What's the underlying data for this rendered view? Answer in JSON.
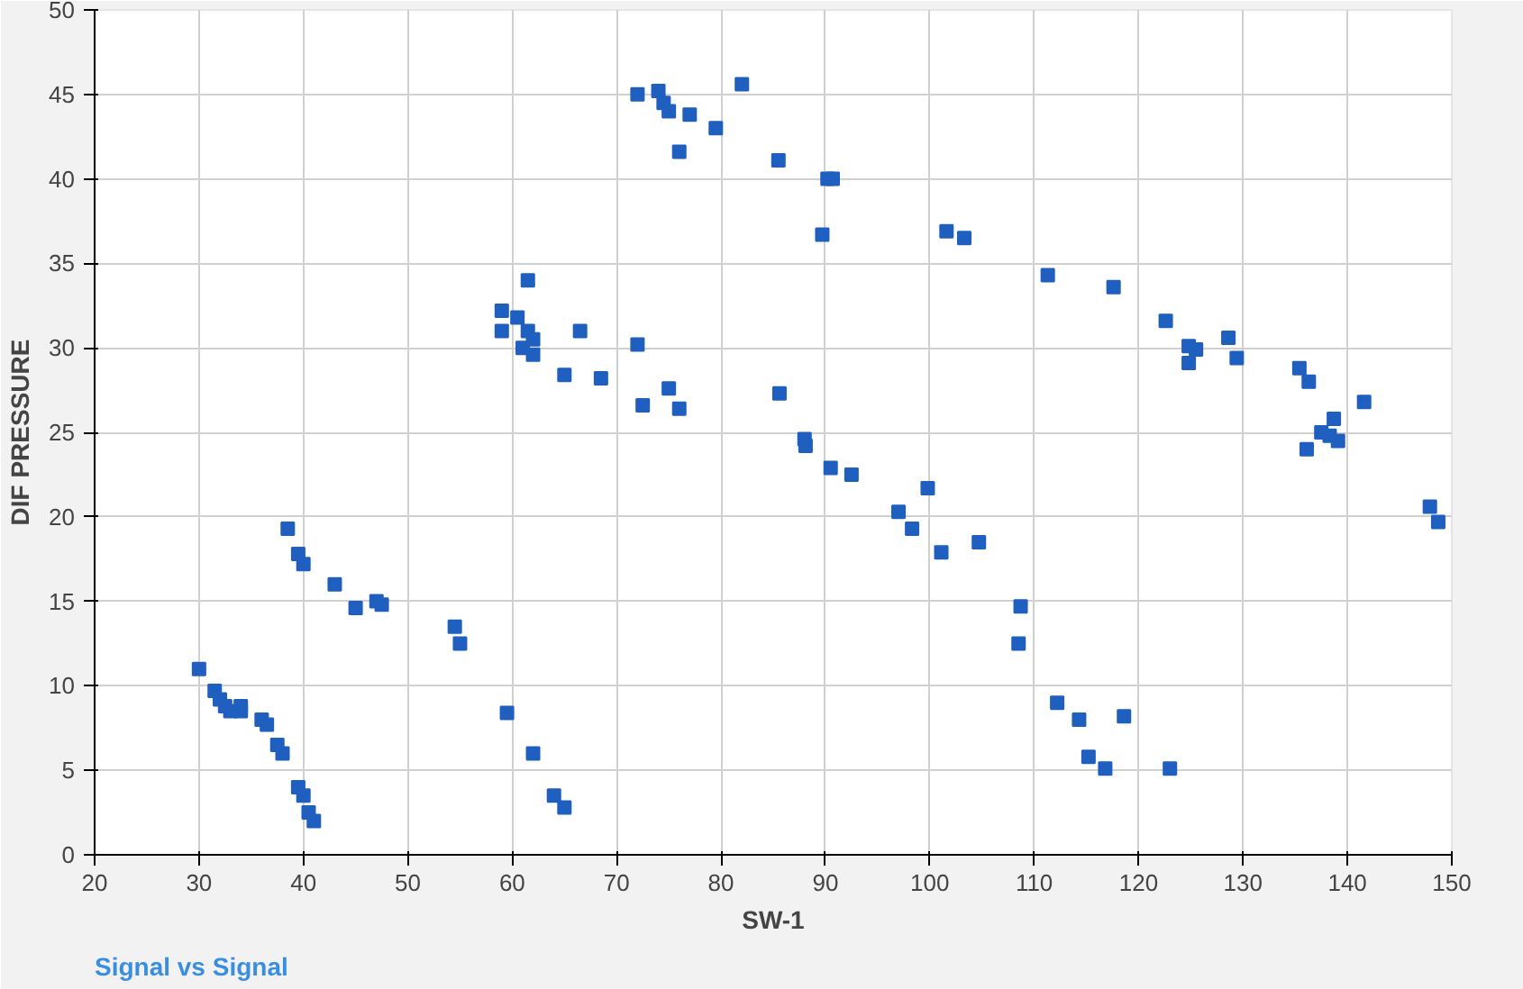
{
  "chart_data": {
    "type": "scatter",
    "xlabel": "SW-1",
    "ylabel": "DIF PRESSURE",
    "annotations": [
      "Signal vs Signal"
    ],
    "xlim": [
      20,
      150
    ],
    "ylim": [
      0,
      50
    ],
    "xticks": [
      20,
      30,
      40,
      50,
      60,
      70,
      80,
      90,
      100,
      110,
      120,
      130,
      140,
      150
    ],
    "yticks": [
      0,
      5,
      10,
      15,
      20,
      25,
      30,
      35,
      40,
      45,
      50
    ],
    "grid": true,
    "marker": "square",
    "series": [
      {
        "color": "#1f5fbf",
        "x": [
          30,
          31.5,
          32,
          32.5,
          33,
          34,
          34,
          36,
          36.5,
          37.5,
          38,
          39.5,
          40,
          40.5,
          41,
          38.5,
          39.5,
          40,
          43,
          45,
          47,
          47.5,
          54.5,
          55,
          59.5,
          62,
          64,
          65,
          59,
          59,
          60.5,
          61,
          61.5,
          61.5,
          62,
          62,
          65,
          66.5,
          68.5,
          72,
          72.5,
          75,
          76,
          72,
          74,
          74.5,
          75,
          76,
          77,
          79.5,
          82,
          85.5,
          90.2,
          90.7,
          89.7,
          101.6,
          103.3,
          111.3,
          117.6,
          122.6,
          124.8,
          125.5,
          124.8,
          128.6,
          129.4,
          135.4,
          136.3,
          136.1,
          137.5,
          138.7,
          139.1,
          138.3,
          141.6,
          147.9,
          148.7,
          85.6,
          88,
          88.1,
          90.5,
          92.5,
          97,
          98.3,
          99.8,
          101.1,
          104.7,
          108.7,
          108.5,
          112.2,
          114.3,
          115.2,
          116.8,
          118.6,
          123
        ],
        "values": [
          11,
          9.7,
          9.2,
          8.8,
          8.5,
          8.5,
          8.8,
          8,
          7.7,
          6.5,
          6,
          4,
          3.5,
          2.5,
          2,
          19.3,
          17.8,
          17.2,
          16,
          14.6,
          15,
          14.8,
          13.5,
          12.5,
          8.4,
          6,
          3.5,
          2.8,
          32.2,
          31,
          31.8,
          30,
          34,
          31,
          30.5,
          29.6,
          28.4,
          31,
          28.2,
          30.2,
          26.6,
          27.6,
          26.4,
          45,
          45.2,
          44.5,
          44,
          41.6,
          43.8,
          43,
          45.6,
          41.1,
          40,
          40,
          36.7,
          36.9,
          36.5,
          34.3,
          33.6,
          31.6,
          30.1,
          29.9,
          29.1,
          30.6,
          29.4,
          28.8,
          28,
          24,
          25,
          25.8,
          24.5,
          24.8,
          26.8,
          20.6,
          19.7,
          27.3,
          24.6,
          24.2,
          22.9,
          22.5,
          20.3,
          19.3,
          21.7,
          17.9,
          18.5,
          14.7,
          12.5,
          9,
          8,
          5.8,
          5.1,
          8.2,
          5.1
        ]
      }
    ]
  }
}
